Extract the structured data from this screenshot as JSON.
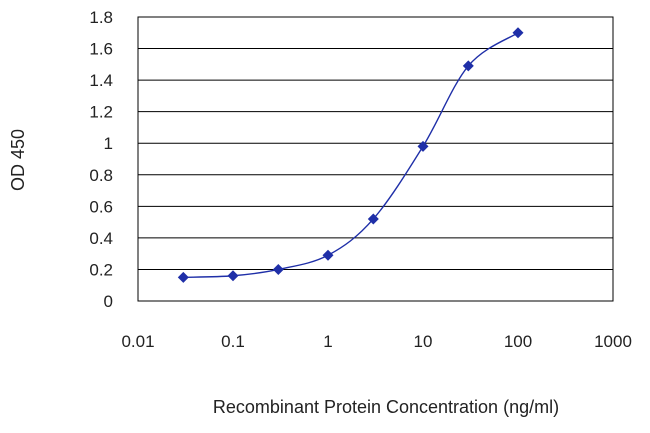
{
  "chart_data": {
    "type": "line",
    "xlabel": "Recombinant Protein Concentration (ng/ml)",
    "ylabel": "OD 450",
    "x_scale": "log",
    "xlim": [
      0.01,
      1000
    ],
    "ylim": [
      0,
      1.8
    ],
    "x_ticks": [
      "0.01",
      "0.1",
      "1",
      "10",
      "100",
      "1000"
    ],
    "y_ticks": [
      "0",
      "0.2",
      "0.4",
      "0.6",
      "0.8",
      "1",
      "1.2",
      "1.4",
      "1.6",
      "1.8"
    ],
    "grid": "horizontal",
    "legend": "none",
    "series": [
      {
        "color": "#1f2fa8",
        "marker": "diamond",
        "x": [
          0.03,
          0.1,
          0.3,
          1,
          3,
          10,
          30,
          100
        ],
        "y": [
          0.15,
          0.16,
          0.2,
          0.29,
          0.52,
          0.98,
          1.49,
          1.7
        ]
      }
    ]
  }
}
